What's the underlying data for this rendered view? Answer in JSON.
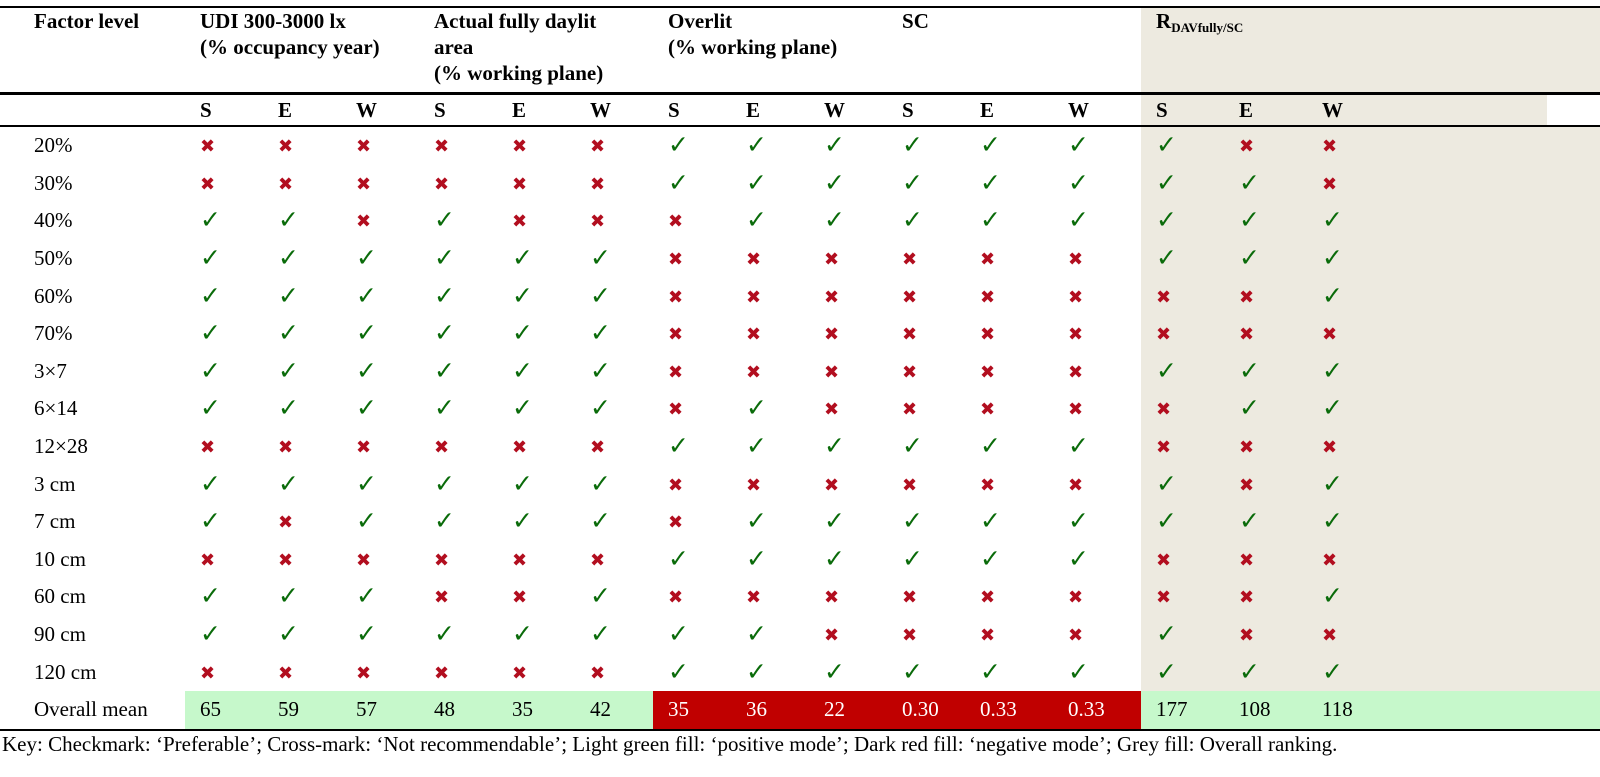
{
  "columns": {
    "factor_level": "Factor level",
    "groups": [
      {
        "line1": "UDI 300-3000 lx",
        "line2": "(% occupancy year)",
        "line3": ""
      },
      {
        "line1": "Actual fully daylit",
        "line2": "area",
        "line3": "(% working plane)"
      },
      {
        "line1": "Overlit",
        "line2": "(% working plane)",
        "line3": ""
      },
      {
        "line1": "SC",
        "line2": "",
        "line3": ""
      }
    ],
    "ranking": {
      "main": "R",
      "sub": "DAVfully/SC"
    },
    "orientations": [
      "S",
      "E",
      "W"
    ]
  },
  "rows": [
    {
      "label": "20%",
      "marks": [
        "x",
        "x",
        "x",
        "x",
        "x",
        "x",
        "c",
        "c",
        "c",
        "c",
        "c",
        "c",
        "c",
        "x",
        "x"
      ]
    },
    {
      "label": "30%",
      "marks": [
        "x",
        "x",
        "x",
        "x",
        "x",
        "x",
        "c",
        "c",
        "c",
        "c",
        "c",
        "c",
        "c",
        "c",
        "x"
      ]
    },
    {
      "label": "40%",
      "marks": [
        "c",
        "c",
        "x",
        "c",
        "x",
        "x",
        "x",
        "c",
        "c",
        "c",
        "c",
        "c",
        "c",
        "c",
        "c"
      ]
    },
    {
      "label": "50%",
      "marks": [
        "c",
        "c",
        "c",
        "c",
        "c",
        "c",
        "x",
        "x",
        "x",
        "x",
        "x",
        "x",
        "c",
        "c",
        "c"
      ]
    },
    {
      "label": "60%",
      "marks": [
        "c",
        "c",
        "c",
        "c",
        "c",
        "c",
        "x",
        "x",
        "x",
        "x",
        "x",
        "x",
        "x",
        "x",
        "c"
      ]
    },
    {
      "label": "70%",
      "marks": [
        "c",
        "c",
        "c",
        "c",
        "c",
        "c",
        "x",
        "x",
        "x",
        "x",
        "x",
        "x",
        "x",
        "x",
        "x"
      ]
    },
    {
      "label": "3×7",
      "marks": [
        "c",
        "c",
        "c",
        "c",
        "c",
        "c",
        "x",
        "x",
        "x",
        "x",
        "x",
        "x",
        "c",
        "c",
        "c"
      ]
    },
    {
      "label": "6×14",
      "marks": [
        "c",
        "c",
        "c",
        "c",
        "c",
        "c",
        "x",
        "c",
        "x",
        "x",
        "x",
        "x",
        "x",
        "c",
        "c"
      ]
    },
    {
      "label": "12×28",
      "marks": [
        "x",
        "x",
        "x",
        "x",
        "x",
        "x",
        "c",
        "c",
        "c",
        "c",
        "c",
        "c",
        "x",
        "x",
        "x"
      ]
    },
    {
      "label": "3 cm",
      "marks": [
        "c",
        "c",
        "c",
        "c",
        "c",
        "c",
        "x",
        "x",
        "x",
        "x",
        "x",
        "x",
        "c",
        "x",
        "c"
      ]
    },
    {
      "label": "7 cm",
      "marks": [
        "c",
        "x",
        "c",
        "c",
        "c",
        "c",
        "x",
        "c",
        "c",
        "c",
        "c",
        "c",
        "c",
        "c",
        "c"
      ]
    },
    {
      "label": "10 cm",
      "marks": [
        "x",
        "x",
        "x",
        "x",
        "x",
        "x",
        "c",
        "c",
        "c",
        "c",
        "c",
        "c",
        "x",
        "x",
        "x"
      ]
    },
    {
      "label": "60 cm",
      "marks": [
        "c",
        "c",
        "c",
        "x",
        "x",
        "c",
        "x",
        "x",
        "x",
        "x",
        "x",
        "x",
        "x",
        "x",
        "c"
      ]
    },
    {
      "label": "90 cm",
      "marks": [
        "c",
        "c",
        "c",
        "c",
        "c",
        "c",
        "c",
        "c",
        "x",
        "x",
        "x",
        "x",
        "c",
        "x",
        "x"
      ]
    },
    {
      "label": "120 cm",
      "marks": [
        "x",
        "x",
        "x",
        "x",
        "x",
        "x",
        "c",
        "c",
        "c",
        "c",
        "c",
        "c",
        "c",
        "c",
        "c"
      ]
    }
  ],
  "mean": {
    "label": "Overall mean",
    "values": [
      "65",
      "59",
      "57",
      "48",
      "35",
      "42",
      "35",
      "36",
      "22",
      "0.30",
      "0.33",
      "0.33",
      "177",
      "108",
      "118"
    ],
    "fills": [
      "pos",
      "pos",
      "pos",
      "pos",
      "pos",
      "pos",
      "neg",
      "neg",
      "neg",
      "neg",
      "neg",
      "neg",
      "pos",
      "pos",
      "pos"
    ]
  },
  "key": "Key: Checkmark: ‘Preferable’; Cross-mark: ‘Not recommendable’; Light green fill: ‘positive mode’; Dark red fill: ‘negative mode’; Grey fill: Overall ranking.",
  "colors": {
    "check": "#0a6b0a",
    "cross": "#b20e1f",
    "positive_fill": "#c6f8cb",
    "negative_fill": "#c00000",
    "ranking_fill": "#edeae0"
  },
  "icons": {
    "c": "checkmark-icon",
    "x": "cross-mark-icon"
  }
}
